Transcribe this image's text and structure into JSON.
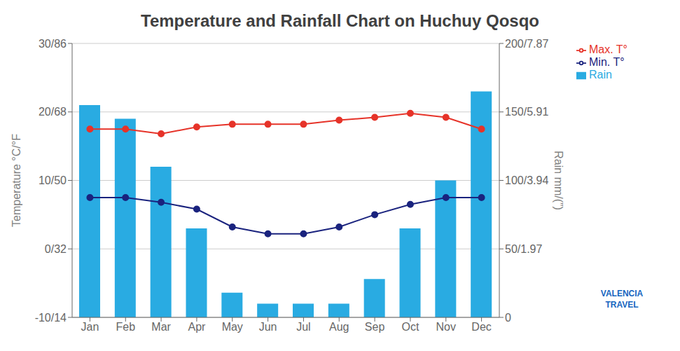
{
  "chart_data": {
    "type": "combo",
    "title": "Temperature and Rainfall Chart on Huchuy Qosqo",
    "categories": [
      "Jan",
      "Feb",
      "Mar",
      "Apr",
      "May",
      "Jun",
      "Jul",
      "Aug",
      "Sep",
      "Oct",
      "Nov",
      "Dec"
    ],
    "series": [
      {
        "name": "Rain",
        "type": "bar",
        "axis": "y2",
        "color": "#29ABE2",
        "values": [
          155,
          145,
          110,
          65,
          18,
          10,
          10,
          10,
          28,
          65,
          100,
          165
        ]
      },
      {
        "name": "Max. T°",
        "type": "line",
        "axis": "y",
        "color": "#E63329",
        "marker": "circle",
        "values": [
          17.5,
          17.5,
          16.8,
          17.8,
          18.2,
          18.2,
          18.2,
          18.8,
          19.2,
          19.8,
          19.2,
          17.5
        ]
      },
      {
        "name": "Min. T°",
        "type": "line",
        "axis": "y",
        "color": "#1A237E",
        "marker": "circle",
        "values": [
          7.5,
          7.5,
          6.8,
          5.8,
          3.2,
          2.2,
          2.2,
          3.2,
          5.0,
          6.5,
          7.5,
          7.5
        ]
      }
    ],
    "ylabel": "Temperature °C/°F",
    "y2label": "Rain mm/(”)",
    "ylim": [
      -10,
      30
    ],
    "yticks": [
      {
        "value": -10,
        "label": "-10/14"
      },
      {
        "value": 0,
        "label": "0/32"
      },
      {
        "value": 10,
        "label": "10/50"
      },
      {
        "value": 20,
        "label": "20/68"
      },
      {
        "value": 30,
        "label": "30/86"
      }
    ],
    "y2lim": [
      0,
      200
    ],
    "y2ticks": [
      0,
      {
        "value": 50,
        "label": "50/1.97"
      },
      {
        "value": 100,
        "label": "100/3.94"
      },
      {
        "value": 150,
        "label": "150/5.91"
      },
      {
        "value": 200,
        "label": "200/7.87"
      }
    ],
    "grid": true,
    "legend": "upper right",
    "annotations": [
      "VALENCIA",
      "TRAVEL"
    ]
  }
}
